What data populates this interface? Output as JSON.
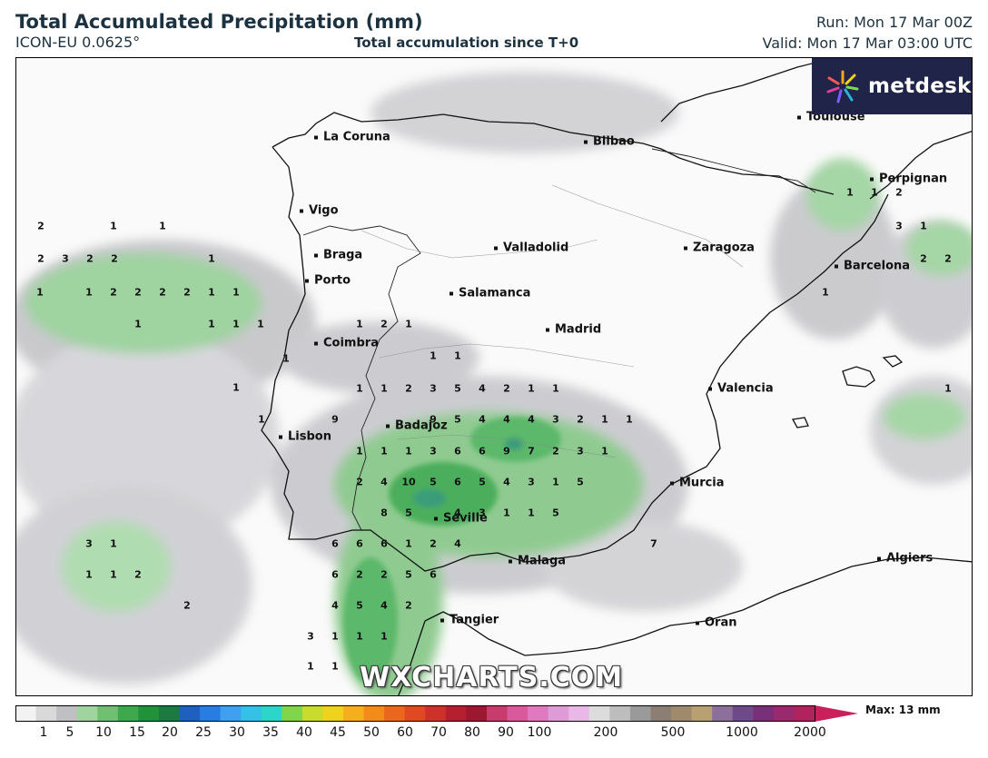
{
  "header": {
    "title": "Total Accumulated Precipitation (mm)",
    "model": "ICON-EU 0.0625°",
    "subtitle": "Total accumulation since T+0",
    "run": "Run: Mon 17 Mar 00Z",
    "valid": "Valid: Mon 17 Mar 03:00 UTC"
  },
  "logo": {
    "text": "metdesk"
  },
  "watermark": "WXCHARTS.COM",
  "cities": [
    {
      "name": "La Coruna"
    },
    {
      "name": "Bilbao"
    },
    {
      "name": "Toulouse"
    },
    {
      "name": "Vigo"
    },
    {
      "name": "Perpignan"
    },
    {
      "name": "Braga"
    },
    {
      "name": "Valladolid"
    },
    {
      "name": "Zaragoza"
    },
    {
      "name": "Barcelona"
    },
    {
      "name": "Porto"
    },
    {
      "name": "Salamanca"
    },
    {
      "name": "Madrid"
    },
    {
      "name": "Coimbra"
    },
    {
      "name": "Valencia"
    },
    {
      "name": "Badajoz"
    },
    {
      "name": "Lisbon"
    },
    {
      "name": "Murcia"
    },
    {
      "name": "Seville"
    },
    {
      "name": "Malaga"
    },
    {
      "name": "Algiers"
    },
    {
      "name": "Tangier"
    },
    {
      "name": "Oran"
    }
  ],
  "values": [
    "2",
    "1",
    "1",
    "2",
    "3",
    "2",
    "2",
    "1",
    "1",
    "1",
    "2",
    "2",
    "2",
    "2",
    "1",
    "1",
    "1",
    "1",
    "1",
    "1",
    "1",
    "2",
    "1",
    "1",
    "1",
    "1",
    "1",
    "1",
    "1",
    "2",
    "3",
    "5",
    "4",
    "2",
    "1",
    "1",
    "1",
    "9",
    "9",
    "5",
    "4",
    "4",
    "4",
    "3",
    "2",
    "1",
    "1",
    "1",
    "1",
    "1",
    "3",
    "6",
    "6",
    "9",
    "7",
    "2",
    "3",
    "1",
    "2",
    "4",
    "10",
    "5",
    "6",
    "5",
    "4",
    "3",
    "1",
    "5",
    "8",
    "5",
    "4",
    "3",
    "1",
    "1",
    "5",
    "6",
    "6",
    "6",
    "1",
    "2",
    "4",
    "7",
    "6",
    "2",
    "2",
    "5",
    "6",
    "3",
    "1",
    "4",
    "5",
    "4",
    "2",
    "3",
    "1",
    "1",
    "1",
    "1",
    "1",
    "1",
    "1",
    "2",
    "2",
    "1",
    "1",
    "1",
    "2",
    "3",
    "1",
    "2",
    "2",
    "1"
  ],
  "legend": {
    "tick_labels": [
      "1",
      "5",
      "10",
      "15",
      "20",
      "25",
      "30",
      "35",
      "40",
      "45",
      "50",
      "60",
      "70",
      "80",
      "90",
      "100",
      "200",
      "500",
      "1000",
      "2000"
    ],
    "max_label": "Max: 13 mm"
  }
}
